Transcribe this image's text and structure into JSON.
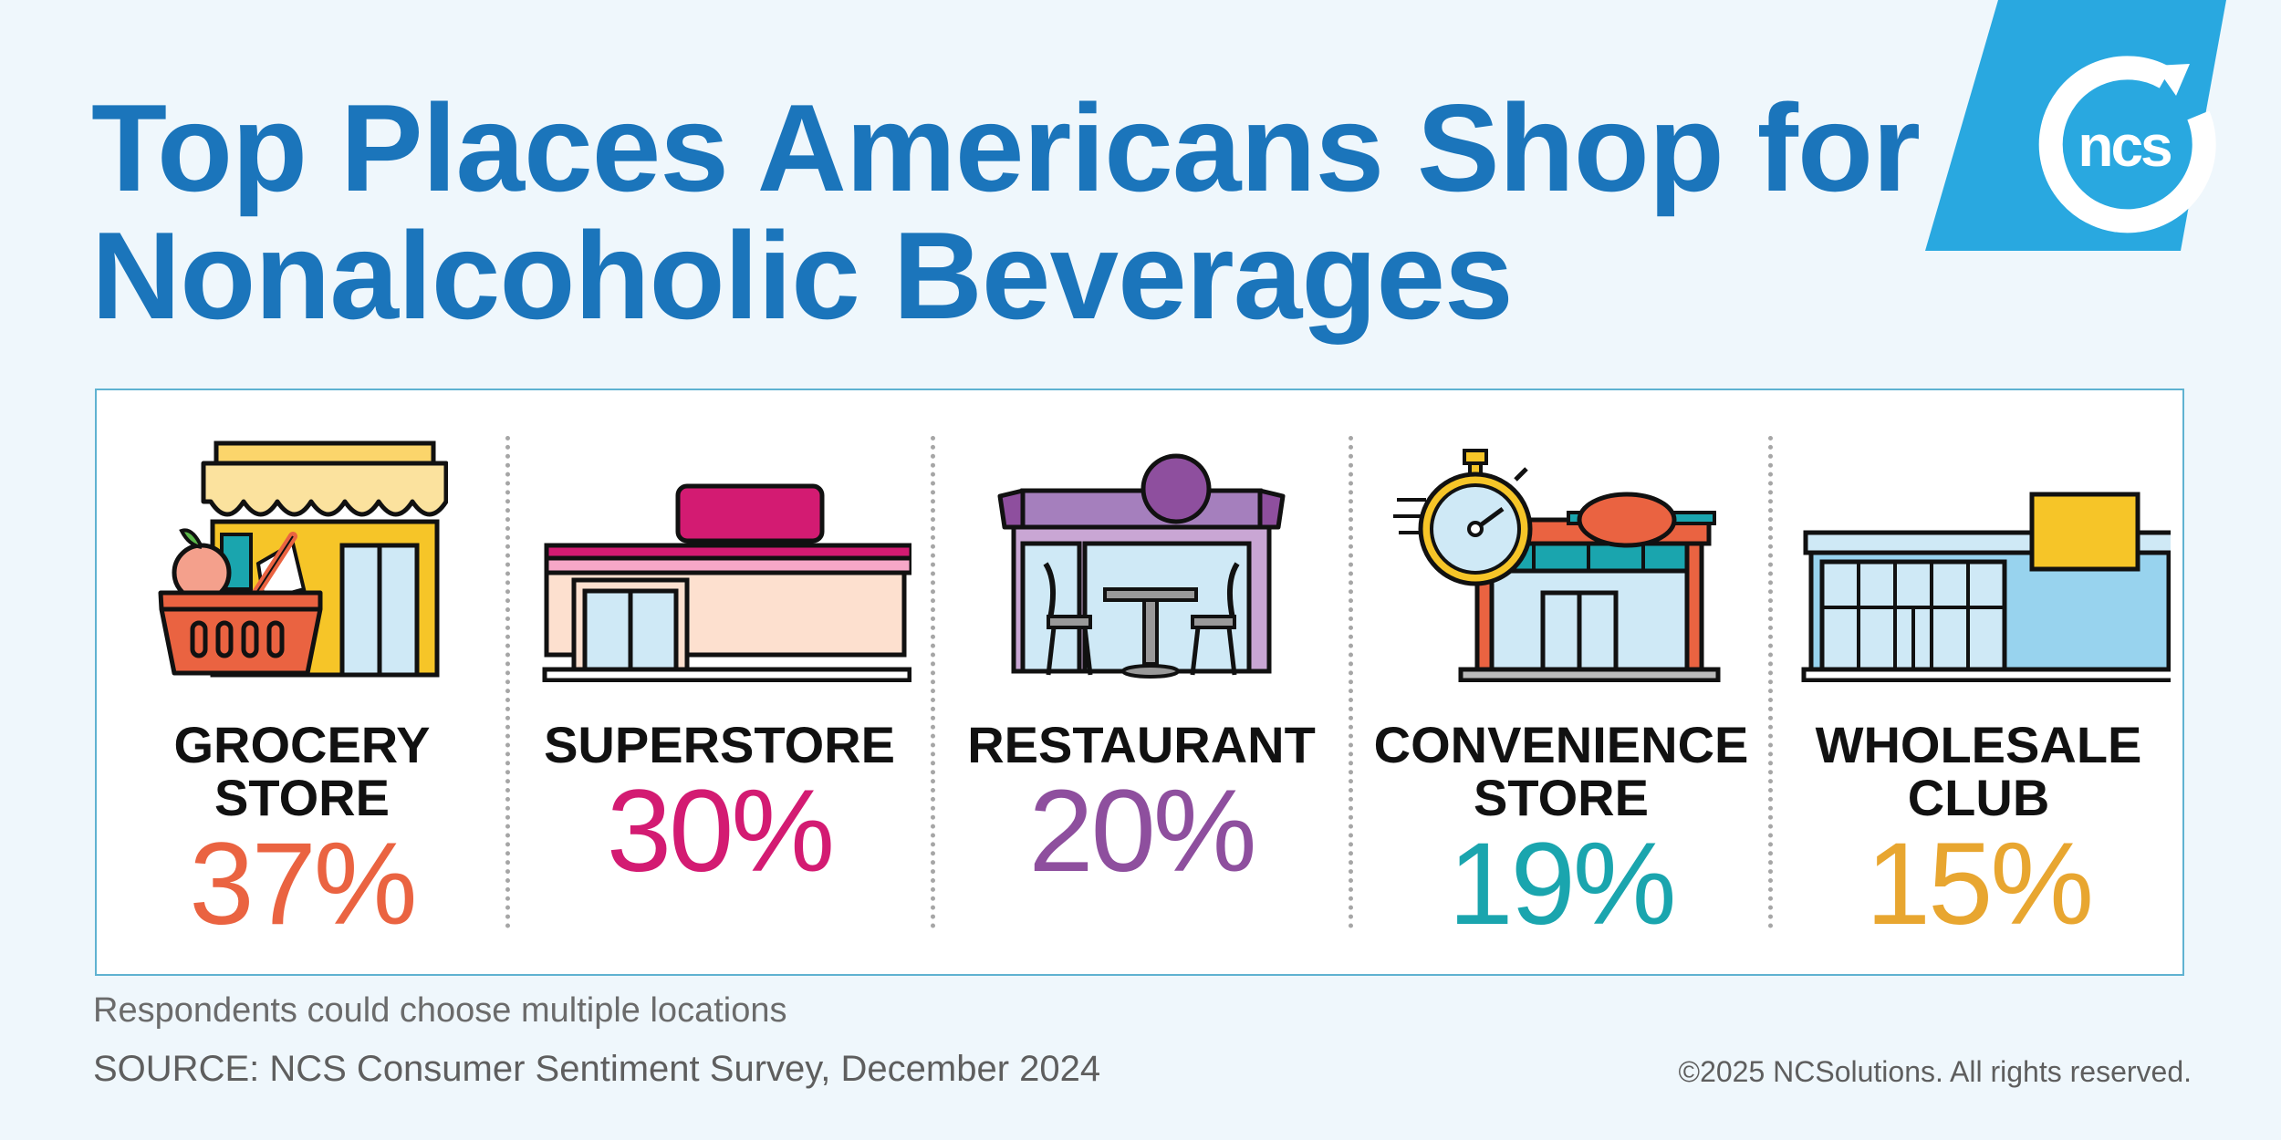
{
  "title": {
    "line1": "Top Places Americans Shop for",
    "line2": "Nonalcoholic Beverages"
  },
  "logo": {
    "text": "ncs",
    "color": "#29a8e0"
  },
  "chart_data": {
    "type": "bar",
    "title": "Top Places Americans Shop for Nonalcoholic Beverages",
    "unit": "%",
    "categories": [
      "GROCERY STORE",
      "SUPERSTORE",
      "RESTAURANT",
      "CONVENIENCE STORE",
      "WHOLESALE CLUB"
    ],
    "values": [
      37,
      30,
      20,
      19,
      15
    ],
    "items": [
      {
        "label": "GROCERY\nSTORE",
        "value": 37,
        "display": "37%",
        "color": "#ea6341",
        "icon": "grocery-store-icon"
      },
      {
        "label": "SUPERSTORE",
        "value": 30,
        "display": "30%",
        "color": "#d31b72",
        "icon": "superstore-icon"
      },
      {
        "label": "RESTAURANT",
        "value": 20,
        "display": "20%",
        "color": "#8e4f9e",
        "icon": "restaurant-icon"
      },
      {
        "label": "CONVENIENCE\nSTORE",
        "value": 19,
        "display": "19%",
        "color": "#1aa5ae",
        "icon": "convenience-store-icon"
      },
      {
        "label": "WHOLESALE\nCLUB",
        "value": 15,
        "display": "15%",
        "color": "#e8a630",
        "icon": "wholesale-club-icon"
      }
    ]
  },
  "footer": {
    "note": "Respondents could choose multiple locations",
    "source": "SOURCE: NCS Consumer Sentiment Survey, December 2024",
    "copyright": "©2025 NCSolutions. All rights reserved."
  }
}
